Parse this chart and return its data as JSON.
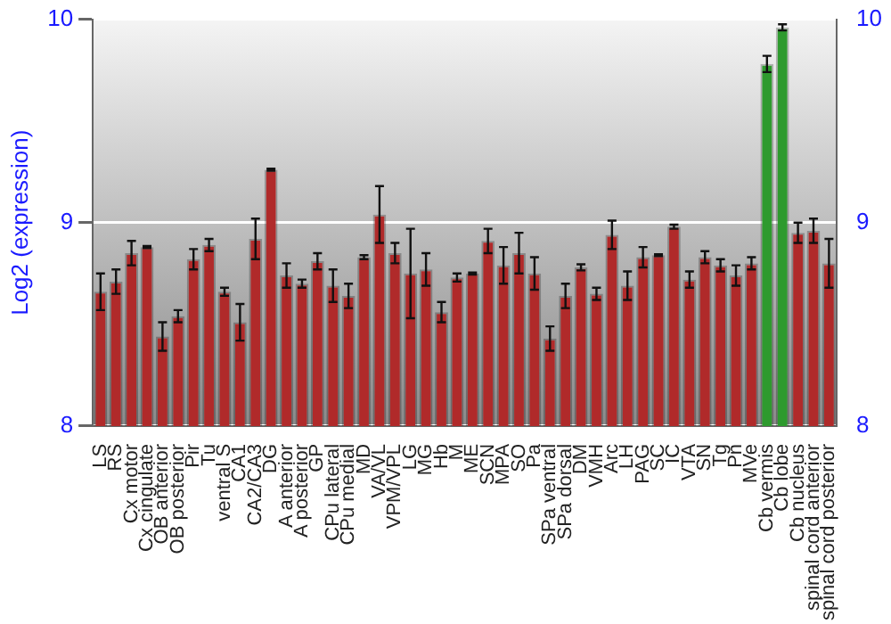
{
  "chart_data": {
    "type": "bar",
    "ylabel": "Log2 (expression)",
    "categories": [
      "LS",
      "RS",
      "Cx motor",
      "Cx cingulate",
      "OB anterior",
      "OB posterior",
      "Pir",
      "Tu",
      "ventral S",
      "CA1",
      "CA2/CA3",
      "DG",
      "A anterior",
      "A posterior",
      "GP",
      "CPu lateral",
      "CPu medial",
      "MD",
      "VA/VL",
      "VPM/VPL",
      "LG",
      "MG",
      "Hb",
      "M",
      "ME",
      "SCN",
      "MPA",
      "SO",
      "Pa",
      "SPa ventral",
      "SPa dorsal",
      "DM",
      "VMH",
      "Arc",
      "LH",
      "PAG",
      "SC",
      "IC",
      "VTA",
      "SN",
      "Tg",
      "Pn",
      "MVe",
      "Cb vermis",
      "Cb lobe",
      "Cb nucleus",
      "spinal cord anterior",
      "spinal cord posterior"
    ],
    "values": [
      8.66,
      8.71,
      8.85,
      8.88,
      8.44,
      8.54,
      8.82,
      8.89,
      8.66,
      8.51,
      8.92,
      9.26,
      8.74,
      8.7,
      8.81,
      8.69,
      8.64,
      8.83,
      9.04,
      8.85,
      8.75,
      8.77,
      8.56,
      8.73,
      8.75,
      8.91,
      8.79,
      8.85,
      8.75,
      8.43,
      8.64,
      8.78,
      8.65,
      8.94,
      8.69,
      8.83,
      8.84,
      8.98,
      8.72,
      8.83,
      8.79,
      8.74,
      8.8,
      9.78,
      9.96,
      8.95,
      8.96,
      8.8
    ],
    "errors": [
      0.09,
      0.06,
      0.06,
      0.005,
      0.07,
      0.03,
      0.05,
      0.03,
      0.02,
      0.09,
      0.1,
      0.005,
      0.06,
      0.02,
      0.04,
      0.08,
      0.06,
      0.01,
      0.14,
      0.05,
      0.22,
      0.08,
      0.05,
      0.02,
      0.005,
      0.06,
      0.09,
      0.1,
      0.08,
      0.06,
      0.06,
      0.015,
      0.03,
      0.07,
      0.07,
      0.05,
      0.005,
      0.01,
      0.04,
      0.03,
      0.03,
      0.05,
      0.03,
      0.04,
      0.015,
      0.05,
      0.06,
      0.12
    ],
    "colors": [
      "#b02a2a",
      "#b02a2a",
      "#b02a2a",
      "#b02a2a",
      "#b02a2a",
      "#b02a2a",
      "#b02a2a",
      "#b02a2a",
      "#b02a2a",
      "#b02a2a",
      "#b02a2a",
      "#b02a2a",
      "#b02a2a",
      "#b02a2a",
      "#b02a2a",
      "#b02a2a",
      "#b02a2a",
      "#b02a2a",
      "#b02a2a",
      "#b02a2a",
      "#b02a2a",
      "#b02a2a",
      "#b02a2a",
      "#b02a2a",
      "#b02a2a",
      "#b02a2a",
      "#b02a2a",
      "#b02a2a",
      "#b02a2a",
      "#b02a2a",
      "#b02a2a",
      "#b02a2a",
      "#b02a2a",
      "#b02a2a",
      "#b02a2a",
      "#b02a2a",
      "#b02a2a",
      "#b02a2a",
      "#b02a2a",
      "#b02a2a",
      "#b02a2a",
      "#b02a2a",
      "#b02a2a",
      "#2e9a2e",
      "#2e9a2e",
      "#b02a2a",
      "#b02a2a",
      "#b02a2a"
    ],
    "ylim": [
      8,
      10
    ],
    "yticks": [
      8,
      9,
      10
    ],
    "y2lim": [
      8,
      10
    ],
    "y2ticks": [
      8,
      9,
      10
    ],
    "grid": "y"
  }
}
